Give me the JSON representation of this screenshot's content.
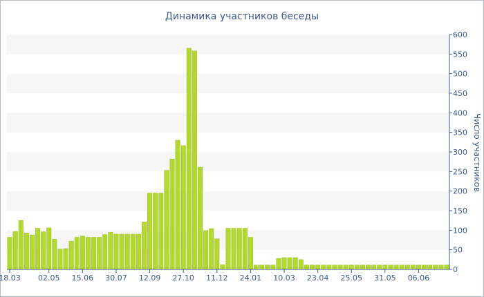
{
  "chart_data": {
    "type": "bar",
    "title": "Динамика участников беседы",
    "xlabel": "",
    "ylabel": "Число участников",
    "ylim": [
      0,
      600
    ],
    "y_ticks": [
      0,
      50,
      100,
      150,
      200,
      250,
      300,
      350,
      400,
      450,
      500,
      550,
      600
    ],
    "y_axis_position": "right",
    "grid": "alternating horizontal bands",
    "legend": "none",
    "x_tick_labels": [
      {
        "label": "18.03",
        "index": 0
      },
      {
        "label": "02.05",
        "index": 7
      },
      {
        "label": "15.06",
        "index": 13
      },
      {
        "label": "30.07",
        "index": 19
      },
      {
        "label": "12.09",
        "index": 25
      },
      {
        "label": "27.10",
        "index": 31
      },
      {
        "label": "11.12",
        "index": 37
      },
      {
        "label": "24.01",
        "index": 43
      },
      {
        "label": "10.03",
        "index": 49
      },
      {
        "label": "23.04",
        "index": 55
      },
      {
        "label": "25.05",
        "index": 61
      },
      {
        "label": "31.05",
        "index": 67
      },
      {
        "label": "06.06",
        "index": 73
      }
    ],
    "values": [
      82,
      97,
      125,
      93,
      88,
      105,
      96,
      106,
      77,
      52,
      53,
      72,
      82,
      85,
      82,
      82,
      82,
      89,
      95,
      90,
      90,
      90,
      90,
      90,
      121,
      195,
      195,
      195,
      253,
      282,
      330,
      316,
      565,
      558,
      261,
      99,
      104,
      78,
      12,
      105,
      105,
      105,
      105,
      82,
      11,
      11,
      11,
      11,
      28,
      30,
      30,
      30,
      25,
      11,
      11,
      11,
      11,
      11,
      11,
      11,
      11,
      11,
      11,
      11,
      11,
      11,
      11,
      11,
      11,
      11,
      11,
      11,
      11,
      11,
      11,
      11,
      11,
      11,
      11
    ],
    "colors": {
      "bar": "#b2d831",
      "bar_edge": "#96c01c",
      "band": "#f6f6f6",
      "axis": "#3e5a8f",
      "text": "#3e5a8f"
    }
  }
}
